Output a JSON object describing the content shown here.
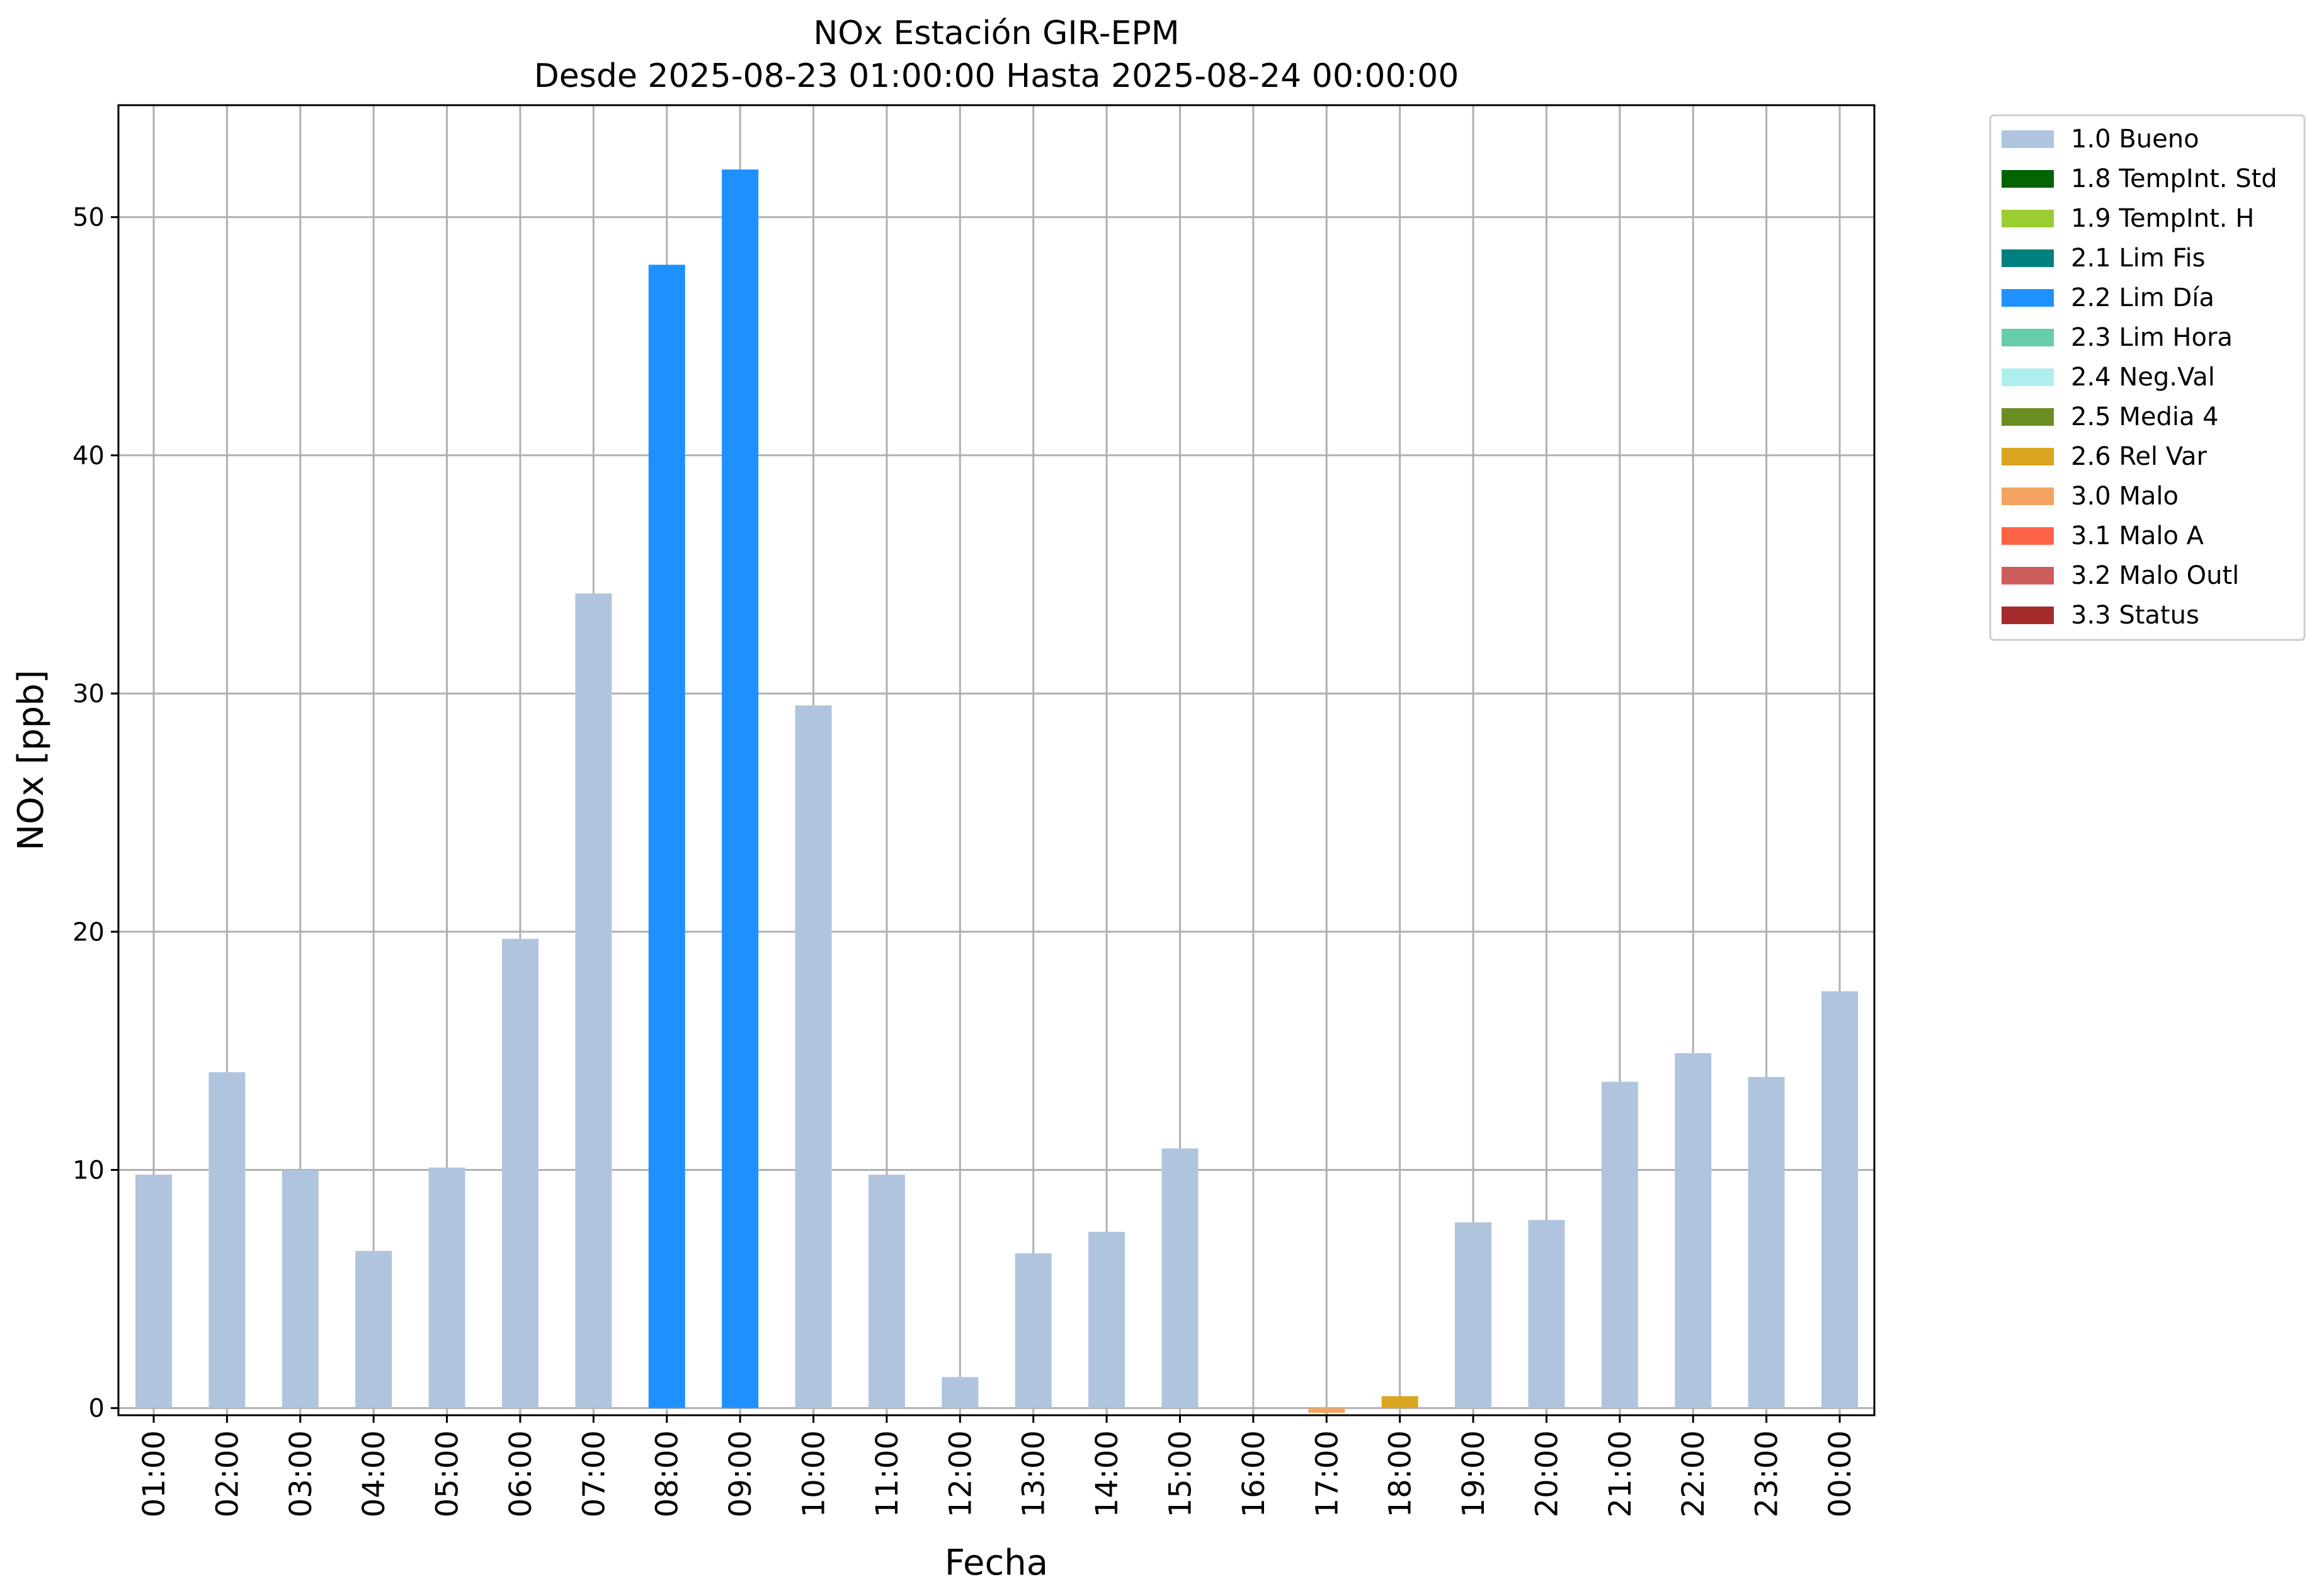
{
  "chart_data": {
    "type": "bar",
    "title": "NOx Estación GIR-EPM",
    "subtitle": "Desde 2025-08-23 01:00:00 Hasta 2025-08-24 00:00:00",
    "xlabel": "Fecha",
    "ylabel": "NOx [ppb]",
    "ylim": [
      -0.3,
      54.7
    ],
    "yticks": [
      "0",
      "10",
      "20",
      "30",
      "40",
      "50"
    ],
    "grid": true,
    "legend_position": "outside-top-right",
    "categories": [
      "01:00",
      "02:00",
      "03:00",
      "04:00",
      "05:00",
      "06:00",
      "07:00",
      "08:00",
      "09:00",
      "10:00",
      "11:00",
      "12:00",
      "13:00",
      "14:00",
      "15:00",
      "16:00",
      "17:00",
      "18:00",
      "19:00",
      "20:00",
      "21:00",
      "22:00",
      "23:00",
      "00:00"
    ],
    "values": [
      9.8,
      14.1,
      10.0,
      6.6,
      10.1,
      19.7,
      34.2,
      48.0,
      52.0,
      29.5,
      9.8,
      1.3,
      6.5,
      7.4,
      10.9,
      null,
      -0.2,
      0.5,
      7.8,
      7.9,
      13.7,
      14.9,
      13.9,
      17.5
    ],
    "flags": [
      "1.0 Bueno",
      "1.0 Bueno",
      "1.0 Bueno",
      "1.0 Bueno",
      "1.0 Bueno",
      "1.0 Bueno",
      "1.0 Bueno",
      "2.2 Lim Día",
      "2.2 Lim Día",
      "1.0 Bueno",
      "1.0 Bueno",
      "1.0 Bueno",
      "1.0 Bueno",
      "1.0 Bueno",
      "1.0 Bueno",
      null,
      "3.0 Malo",
      "2.6 Rel Var",
      "1.0 Bueno",
      "1.0 Bueno",
      "1.0 Bueno",
      "1.0 Bueno",
      "1.0 Bueno",
      "1.0 Bueno"
    ],
    "legend": [
      {
        "label": "1.0 Bueno",
        "color": "#b0c4de"
      },
      {
        "label": "1.8 TempInt. Std",
        "color": "#006400"
      },
      {
        "label": "1.9 TempInt. H",
        "color": "#9acd32"
      },
      {
        "label": "2.1 Lim Fis",
        "color": "#008080"
      },
      {
        "label": "2.2 Lim Día",
        "color": "#1e90ff"
      },
      {
        "label": "2.3 Lim Hora",
        "color": "#66cdaa"
      },
      {
        "label": "2.4 Neg.Val",
        "color": "#afeeee"
      },
      {
        "label": "2.5 Media 4",
        "color": "#6b8e23"
      },
      {
        "label": "2.6 Rel Var",
        "color": "#daa520"
      },
      {
        "label": "3.0 Malo",
        "color": "#f4a460"
      },
      {
        "label": "3.1 Malo A",
        "color": "#ff6347"
      },
      {
        "label": "3.2 Malo Outl",
        "color": "#cd5c5c"
      },
      {
        "label": "3.3 Status",
        "color": "#a52a2a"
      }
    ]
  }
}
